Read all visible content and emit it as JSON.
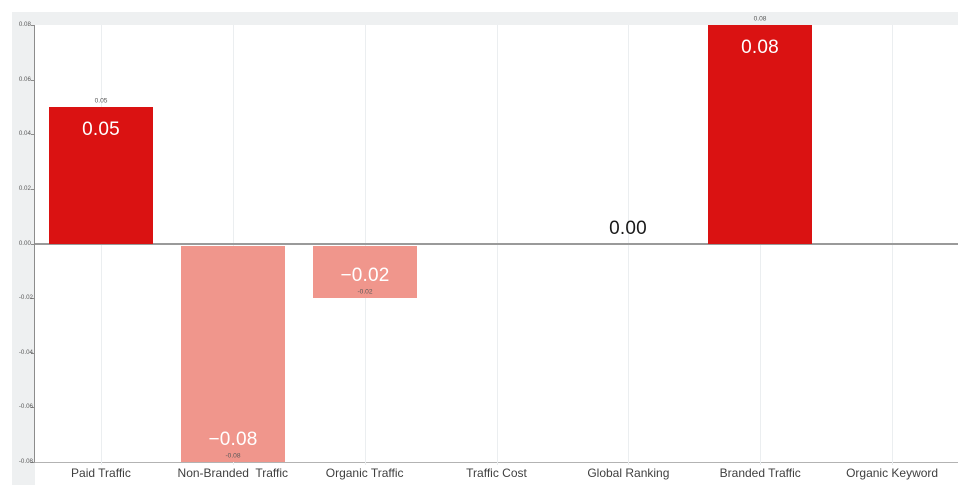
{
  "chart_data": {
    "type": "bar",
    "title": "",
    "xlabel": "",
    "ylabel": "",
    "categories": [
      "Paid Traffic",
      "Non-Branded  Traffic",
      "Organic Traffic",
      "Traffic Cost",
      "Global Ranking",
      "Branded Traffic",
      "Organic Keyword"
    ],
    "values": [
      0.05,
      -0.08,
      -0.02,
      null,
      0.0,
      0.08,
      null
    ],
    "ylim": [
      -0.08,
      0.08
    ],
    "ytick_step": 0.02,
    "yticks": [
      "0.08",
      "0.06",
      "0.04",
      "0.02",
      "0.00",
      "-0.02",
      "-0.04",
      "-0.06",
      "-0.08"
    ],
    "grid": "faint vertical gridlines at category centers",
    "legend": "none",
    "points": [
      {
        "category": "Paid Traffic",
        "value": 0.05,
        "bar_label": "0.05",
        "outer_label": "0.05"
      },
      {
        "category": "Non-Branded  Traffic",
        "value": -0.08,
        "bar_label": "−0.08",
        "outer_label": "-0.08"
      },
      {
        "category": "Organic Traffic",
        "value": -0.02,
        "bar_label": "−0.02",
        "outer_label": "-0.02"
      },
      {
        "category": "Traffic Cost",
        "value": null,
        "bar_label": "",
        "outer_label": ""
      },
      {
        "category": "Global Ranking",
        "value": 0.0,
        "bar_label": "0.00",
        "outer_label": ""
      },
      {
        "category": "Branded Traffic",
        "value": 0.08,
        "bar_label": "0.08",
        "outer_label": "0.08"
      },
      {
        "category": "Organic Keyword",
        "value": null,
        "bar_label": "",
        "outer_label": ""
      }
    ]
  },
  "colors": {
    "positive_bar": "#da1212",
    "negative_bar": "#f0968c",
    "bar_label_light": "#ffffff",
    "zero_value_label": "#1a1a1a",
    "axis_line": "#8c8c8c",
    "zero_line": "#9a9a9a",
    "baseline": "#b3b3b3",
    "gridline": "#ebeef0",
    "margin_strip": "#eef0f1",
    "tick_text": "#595959",
    "category_text": "#404040"
  }
}
